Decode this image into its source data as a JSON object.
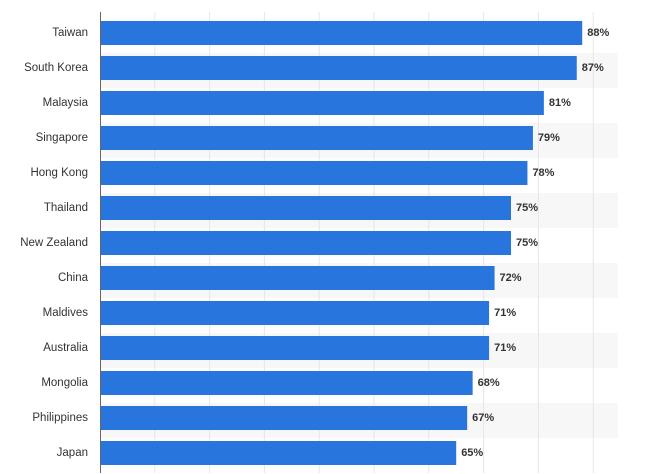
{
  "chart_data": {
    "type": "bar",
    "orientation": "horizontal",
    "categories": [
      "Taiwan",
      "South Korea",
      "Malaysia",
      "Singapore",
      "Hong Kong",
      "Thailand",
      "New Zealand",
      "China",
      "Maldives",
      "Australia",
      "Mongolia",
      "Philippines",
      "Japan"
    ],
    "values": [
      88,
      87,
      81,
      79,
      78,
      75,
      75,
      72,
      71,
      71,
      68,
      67,
      65
    ],
    "value_labels": [
      "88%",
      "87%",
      "81%",
      "79%",
      "78%",
      "75%",
      "75%",
      "72%",
      "71%",
      "71%",
      "68%",
      "67%",
      "65%"
    ],
    "title": "",
    "xlabel": "",
    "ylabel": "",
    "xlim": [
      0,
      100
    ],
    "grid": true,
    "legend": "none",
    "colors": {
      "bar": "#2876dd",
      "row_band": "#f7f7f7",
      "grid": "#e6e6e6",
      "axis": "#666666",
      "text": "#333333"
    }
  }
}
